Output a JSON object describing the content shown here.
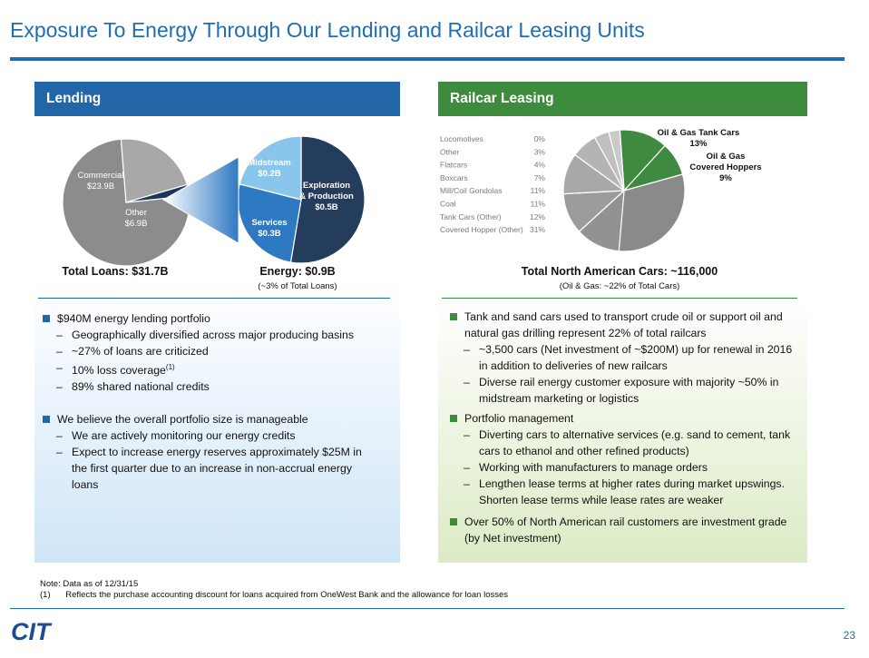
{
  "page": {
    "title": "Exposure To Energy Through Our Lending and Railcar Leasing Units",
    "page_number": "23"
  },
  "lending": {
    "header": "Lending",
    "total_loans_label": "Total Loans: $31.7B",
    "energy_label": "Energy: $0.9B",
    "energy_sub": "(~3% of Total Loans)",
    "pie_total": {
      "slices": [
        {
          "name": "Commercial",
          "value": "$23.9B",
          "amount": 23.9,
          "color": "#8c8c8c"
        },
        {
          "name": "Other",
          "value": "$6.9B",
          "amount": 6.9,
          "color": "#a8a8a8"
        },
        {
          "name": "Energy",
          "value": "",
          "amount": 0.9,
          "color": "#1d3557"
        }
      ]
    },
    "pie_energy": {
      "slices": [
        {
          "name": "Exploration & Production",
          "name_line1": "Exploration",
          "name_line2": "& Production",
          "value": "$0.5B",
          "amount": 0.5,
          "color": "#253d5d"
        },
        {
          "name": "Services",
          "value": "$0.3B",
          "amount": 0.25,
          "color": "#2f79c2"
        },
        {
          "name": "Midstream",
          "value": "$0.2B",
          "amount": 0.2,
          "color": "#8ac6ec"
        }
      ]
    },
    "bullets": [
      {
        "text": "$940M energy lending portfolio",
        "subs": [
          "Geographically diversified across major producing basins",
          "~27% of loans are criticized",
          "10% loss coverage",
          "89% shared national credits"
        ],
        "footnote_marker": "(1)"
      },
      {
        "text": "We believe the overall portfolio size is manageable",
        "subs": [
          "We are actively monitoring our energy credits",
          "Expect to increase energy reserves  approximately $25M in the first quarter due to an increase in non-accrual energy loans"
        ]
      }
    ]
  },
  "railcar": {
    "header": "Railcar Leasing",
    "total_label": "Total North American Cars: ~116,000",
    "total_sub": "(Oil & Gas: ~22% of Total Cars)",
    "legend": [
      {
        "label": "Locomotives",
        "pct": "0%"
      },
      {
        "label": "Other",
        "pct": "3%"
      },
      {
        "label": "Flatcars",
        "pct": "4%"
      },
      {
        "label": "Boxcars",
        "pct": "7%"
      },
      {
        "label": "Mill/Coil Gondolas",
        "pct": "11%"
      },
      {
        "label": "Coal",
        "pct": "11%"
      },
      {
        "label": "Tank Cars (Other)",
        "pct": "12%"
      },
      {
        "label": "Covered Hopper (Other)",
        "pct": "31%"
      }
    ],
    "callouts": {
      "tank_line1": "Oil & Gas Tank Cars",
      "tank_line2": "13%",
      "hopper_line1": "Oil & Gas",
      "hopper_line2": "Covered Hoppers",
      "hopper_line3": "9%"
    },
    "bullets": [
      {
        "text": "Tank and sand cars used to transport crude oil or support oil and natural gas drilling represent 22% of total railcars",
        "subs": [
          "~3,500 cars (Net investment of ~$200M) up for renewal in 2016 in addition to deliveries of new railcars",
          "Diverse rail energy customer exposure with majority ~50% in midstream marketing or logistics"
        ]
      },
      {
        "text": "Portfolio management",
        "subs": [
          "Diverting cars to alternative services (e.g. sand to cement, tank cars to ethanol and other refined products)",
          "Working with manufacturers to manage orders",
          "Lengthen lease terms at higher rates during market upswings. Shorten lease terms while lease rates are weaker"
        ]
      },
      {
        "text": "Over 50% of North American rail customers are investment grade (by Net investment)",
        "subs": []
      }
    ]
  },
  "chart_data": [
    {
      "type": "pie",
      "title": "Total Loans: $31.7B",
      "categories": [
        "Commercial",
        "Other",
        "Energy"
      ],
      "values": [
        23.9,
        6.9,
        0.9
      ],
      "units": "$B"
    },
    {
      "type": "pie",
      "title": "Energy: $0.9B",
      "categories": [
        "Exploration & Production",
        "Services",
        "Midstream"
      ],
      "values": [
        0.5,
        0.3,
        0.2
      ],
      "units": "$B"
    },
    {
      "type": "pie",
      "title": "Total North American Cars: ~116,000",
      "categories": [
        "Oil & Gas Tank Cars",
        "Oil & Gas Covered Hoppers",
        "Covered Hopper (Other)",
        "Tank Cars (Other)",
        "Coal",
        "Mill/Coil Gondolas",
        "Boxcars",
        "Flatcars",
        "Other",
        "Locomotives"
      ],
      "values": [
        13,
        9,
        31,
        12,
        11,
        11,
        7,
        4,
        3,
        0
      ],
      "units": "%"
    }
  ],
  "footer": {
    "note": "Note: Data as of 12/31/15",
    "footnote_num": "(1)",
    "footnote_text": "Reflects the purchase accounting discount for loans acquired from OneWest Bank and the allowance for loan losses",
    "logo_text": "CIT",
    "colors": {
      "brand": "#1f6db5",
      "logo": "#1d4c8f",
      "lending": "#2266a8",
      "railcar": "#3d8b3c"
    }
  }
}
